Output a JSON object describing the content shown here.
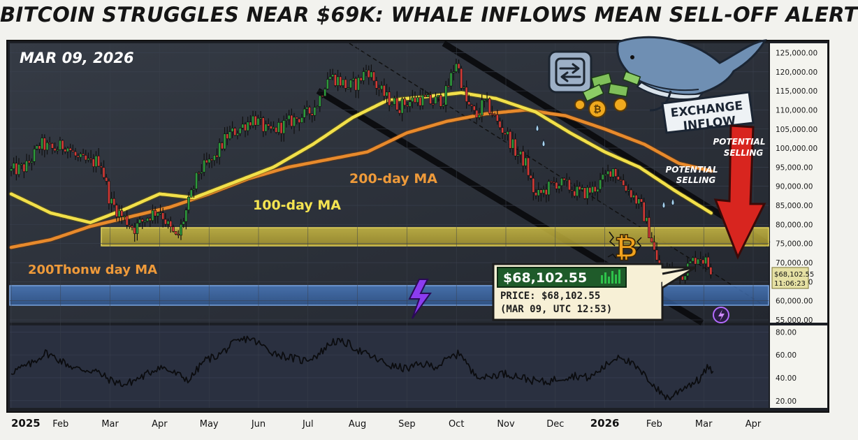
{
  "headline": "BITCOIN STRUGGLES NEAR $69K: WHALE INFLOWS MEAN SELL-OFF ALERT",
  "date_label": "MAR 09, 2026",
  "annotations": {
    "ma200_label": "200-day MA",
    "ma100_label": "100-day MA",
    "ma200_label_alt": "200Thonw day MA",
    "exchange_inflow_line1": "EXCHANGE",
    "exchange_inflow_line2": "INFLOW",
    "potential_selling_1_line1": "POTENTIAL",
    "potential_selling_1_line2": "SELLING",
    "potential_selling_2_line1": "POTENTIAL",
    "potential_selling_2_line2": "SELLING"
  },
  "price_box": {
    "price": "$68,102.55",
    "detail_line1": "PRICE: $68,102.55",
    "detail_line2": "(MAR 09, UTC 12:53)"
  },
  "current_price_tag": {
    "price": "$68,102.55",
    "timer": "11:06:23"
  },
  "colors": {
    "up_candle": "#2e9a3c",
    "down_candle": "#d23a36",
    "ma100": "#f2e04a",
    "ma200": "#e88a2c",
    "support_zone": "#c8b53a",
    "lower_zone": "#3e6fb8",
    "background": "#2a2f38",
    "arrow": "#d8251f"
  },
  "icons": [
    "exchange-icon",
    "whale-icon",
    "bitcoin-coin-icon",
    "lightning-icon",
    "cash-icon"
  ],
  "chart_data": [
    {
      "type": "candlestick",
      "title": "BITCOIN STRUGGLES NEAR $69K: WHALE INFLOWS MEAN SELL-OFF ALERT",
      "x_ticks": [
        "2025",
        "Feb",
        "Mar",
        "Apr",
        "May",
        "Jun",
        "Jul",
        "Aug",
        "Sep",
        "Oct",
        "Nov",
        "Dec",
        "2026",
        "Feb",
        "Mar",
        "Apr"
      ],
      "y_ticks": [
        "125,000.00",
        "120,000.00",
        "115,000.00",
        "110,000.00",
        "105,000.00",
        "100,000.00",
        "95,000.00",
        "90,000.00",
        "85,000.00",
        "80,000.00",
        "75,000.00",
        "70,000.00",
        "65,000.00",
        "60,000.00",
        "55,000.00"
      ],
      "ylim": [
        55000,
        126000
      ],
      "x_month_range": [
        0,
        15
      ],
      "close_anchors": [
        [
          0.0,
          94000
        ],
        [
          0.3,
          95000
        ],
        [
          0.6,
          101000
        ],
        [
          0.85,
          99500
        ],
        [
          1.1,
          101000
        ],
        [
          1.35,
          97000
        ],
        [
          1.6,
          96000
        ],
        [
          1.8,
          97000
        ],
        [
          2.0,
          86000
        ],
        [
          2.25,
          82000
        ],
        [
          2.5,
          79000
        ],
        [
          2.75,
          82000
        ],
        [
          3.0,
          84000
        ],
        [
          3.2,
          79000
        ],
        [
          3.35,
          76000
        ],
        [
          3.55,
          84000
        ],
        [
          3.8,
          94000
        ],
        [
          4.1,
          97000
        ],
        [
          4.35,
          103000
        ],
        [
          4.6,
          105000
        ],
        [
          4.9,
          108000
        ],
        [
          5.2,
          104000
        ],
        [
          5.5,
          106000
        ],
        [
          5.8,
          108000
        ],
        [
          6.0,
          109000
        ],
        [
          6.2,
          112000
        ],
        [
          6.4,
          119000
        ],
        [
          6.6,
          118000
        ],
        [
          6.8,
          116000
        ],
        [
          7.0,
          117000
        ],
        [
          7.2,
          121000
        ],
        [
          7.4,
          116000
        ],
        [
          7.6,
          113000
        ],
        [
          7.85,
          111000
        ],
        [
          8.0,
          112000
        ],
        [
          8.25,
          113000
        ],
        [
          8.5,
          112000
        ],
        [
          8.75,
          113000
        ],
        [
          9.0,
          123000
        ],
        [
          9.2,
          112000
        ],
        [
          9.4,
          108000
        ],
        [
          9.55,
          112000
        ],
        [
          9.7,
          110000
        ],
        [
          9.85,
          106000
        ],
        [
          10.0,
          104000
        ],
        [
          10.2,
          99000
        ],
        [
          10.4,
          96000
        ],
        [
          10.6,
          87000
        ],
        [
          10.8,
          89000
        ],
        [
          11.0,
          91000
        ],
        [
          11.25,
          90000
        ],
        [
          11.5,
          88000
        ],
        [
          11.75,
          89000
        ],
        [
          12.0,
          92000
        ],
        [
          12.15,
          95000
        ],
        [
          12.35,
          91000
        ],
        [
          12.55,
          88000
        ],
        [
          12.75,
          84000
        ],
        [
          12.95,
          76000
        ],
        [
          13.05,
          70000
        ],
        [
          13.15,
          67000
        ],
        [
          13.35,
          68000
        ],
        [
          13.55,
          67000
        ],
        [
          13.75,
          70000
        ],
        [
          13.9,
          72000
        ],
        [
          14.05,
          70000
        ],
        [
          14.15,
          68100
        ]
      ],
      "ma100_anchors": [
        [
          0.0,
          88000
        ],
        [
          0.8,
          83000
        ],
        [
          1.6,
          80500
        ],
        [
          2.3,
          84000
        ],
        [
          3.0,
          88000
        ],
        [
          3.7,
          87000
        ],
        [
          4.5,
          91000
        ],
        [
          5.3,
          95000
        ],
        [
          6.1,
          101000
        ],
        [
          6.9,
          108000
        ],
        [
          7.6,
          112500
        ],
        [
          8.4,
          113500
        ],
        [
          9.1,
          114500
        ],
        [
          9.8,
          113000
        ],
        [
          10.6,
          109500
        ],
        [
          11.3,
          104000
        ],
        [
          12.0,
          99000
        ],
        [
          12.7,
          95000
        ],
        [
          13.4,
          89000
        ],
        [
          14.15,
          83000
        ]
      ],
      "ma200_anchors": [
        [
          0.0,
          74000
        ],
        [
          0.8,
          76000
        ],
        [
          1.6,
          79500
        ],
        [
          2.4,
          82000
        ],
        [
          3.2,
          84500
        ],
        [
          4.0,
          88000
        ],
        [
          4.8,
          92000
        ],
        [
          5.6,
          95000
        ],
        [
          6.4,
          97000
        ],
        [
          7.2,
          99000
        ],
        [
          8.0,
          104000
        ],
        [
          8.8,
          107000
        ],
        [
          9.6,
          109000
        ],
        [
          10.4,
          110000
        ],
        [
          11.2,
          108500
        ],
        [
          12.0,
          105000
        ],
        [
          12.8,
          101000
        ],
        [
          13.5,
          96000
        ],
        [
          14.15,
          94000
        ]
      ],
      "support_zone": [
        74000,
        79000
      ],
      "lower_zone": [
        61500,
        66500
      ],
      "current_price": 68102.55,
      "rsi": {
        "ylim": [
          15,
          82
        ],
        "y_ticks": [
          "80.00",
          "60.00",
          "40.00",
          "20.00"
        ],
        "anchors": [
          [
            0.0,
            45
          ],
          [
            0.4,
            52
          ],
          [
            0.7,
            62
          ],
          [
            1.0,
            55
          ],
          [
            1.3,
            48
          ],
          [
            1.7,
            46
          ],
          [
            2.0,
            38
          ],
          [
            2.3,
            34
          ],
          [
            2.7,
            42
          ],
          [
            3.0,
            50
          ],
          [
            3.4,
            42
          ],
          [
            3.6,
            38
          ],
          [
            3.9,
            55
          ],
          [
            4.2,
            60
          ],
          [
            4.5,
            70
          ],
          [
            4.8,
            75
          ],
          [
            5.0,
            70
          ],
          [
            5.3,
            62
          ],
          [
            5.6,
            58
          ],
          [
            5.9,
            55
          ],
          [
            6.2,
            60
          ],
          [
            6.5,
            72
          ],
          [
            6.8,
            70
          ],
          [
            7.1,
            62
          ],
          [
            7.4,
            56
          ],
          [
            7.7,
            50
          ],
          [
            8.0,
            48
          ],
          [
            8.3,
            52
          ],
          [
            8.6,
            50
          ],
          [
            8.9,
            58
          ],
          [
            9.1,
            62
          ],
          [
            9.3,
            45
          ],
          [
            9.6,
            40
          ],
          [
            9.9,
            44
          ],
          [
            10.2,
            42
          ],
          [
            10.5,
            38
          ],
          [
            10.8,
            36
          ],
          [
            11.1,
            40
          ],
          [
            11.4,
            42
          ],
          [
            11.7,
            40
          ],
          [
            12.0,
            50
          ],
          [
            12.3,
            60
          ],
          [
            12.6,
            50
          ],
          [
            12.9,
            38
          ],
          [
            13.1,
            28
          ],
          [
            13.3,
            22
          ],
          [
            13.6,
            32
          ],
          [
            13.9,
            38
          ],
          [
            14.1,
            50
          ],
          [
            14.2,
            42
          ]
        ]
      }
    }
  ]
}
